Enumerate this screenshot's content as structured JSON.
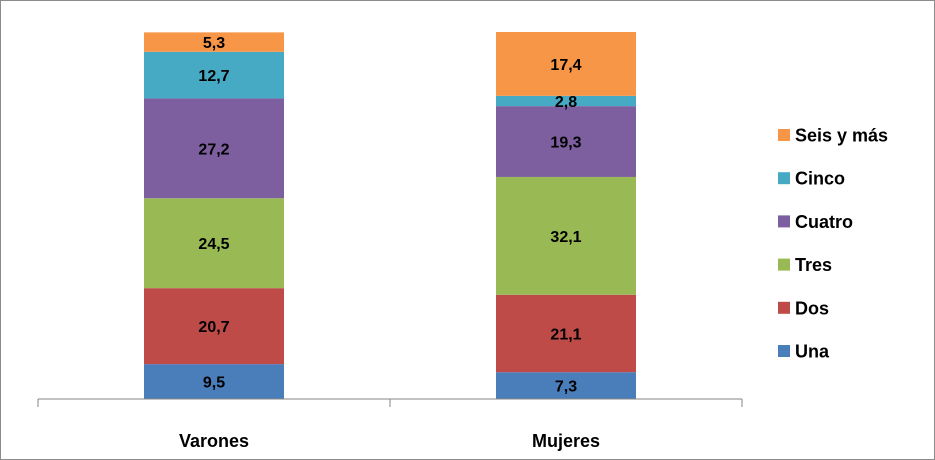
{
  "chart_data": {
    "type": "bar",
    "stacked": true,
    "categories": [
      "Varones",
      "Mujeres"
    ],
    "series": [
      {
        "name": "Una",
        "color": "#4a7ebb",
        "values": [
          9.5,
          7.3
        ],
        "labels": [
          "9,5",
          "7,3"
        ]
      },
      {
        "name": "Dos",
        "color": "#be4b48",
        "values": [
          20.7,
          21.1
        ],
        "labels": [
          "20,7",
          "21,1"
        ]
      },
      {
        "name": "Tres",
        "color": "#98b954",
        "values": [
          24.5,
          32.1
        ],
        "labels": [
          "24,5",
          "32,1"
        ]
      },
      {
        "name": "Cuatro",
        "color": "#7d5fa0",
        "values": [
          27.2,
          19.3
        ],
        "labels": [
          "27,2",
          "19,3"
        ]
      },
      {
        "name": "Cinco",
        "color": "#46aac5",
        "values": [
          12.7,
          2.8
        ],
        "labels": [
          "12,7",
          "2,8"
        ]
      },
      {
        "name": "Seis y más",
        "color": "#f79646",
        "values": [
          5.3,
          17.4
        ],
        "labels": [
          "5,3",
          "17,4"
        ]
      }
    ],
    "ylim": [
      0,
      100
    ],
    "legend_position": "right",
    "grid": false,
    "title": "",
    "xlabel": "",
    "ylabel": ""
  }
}
